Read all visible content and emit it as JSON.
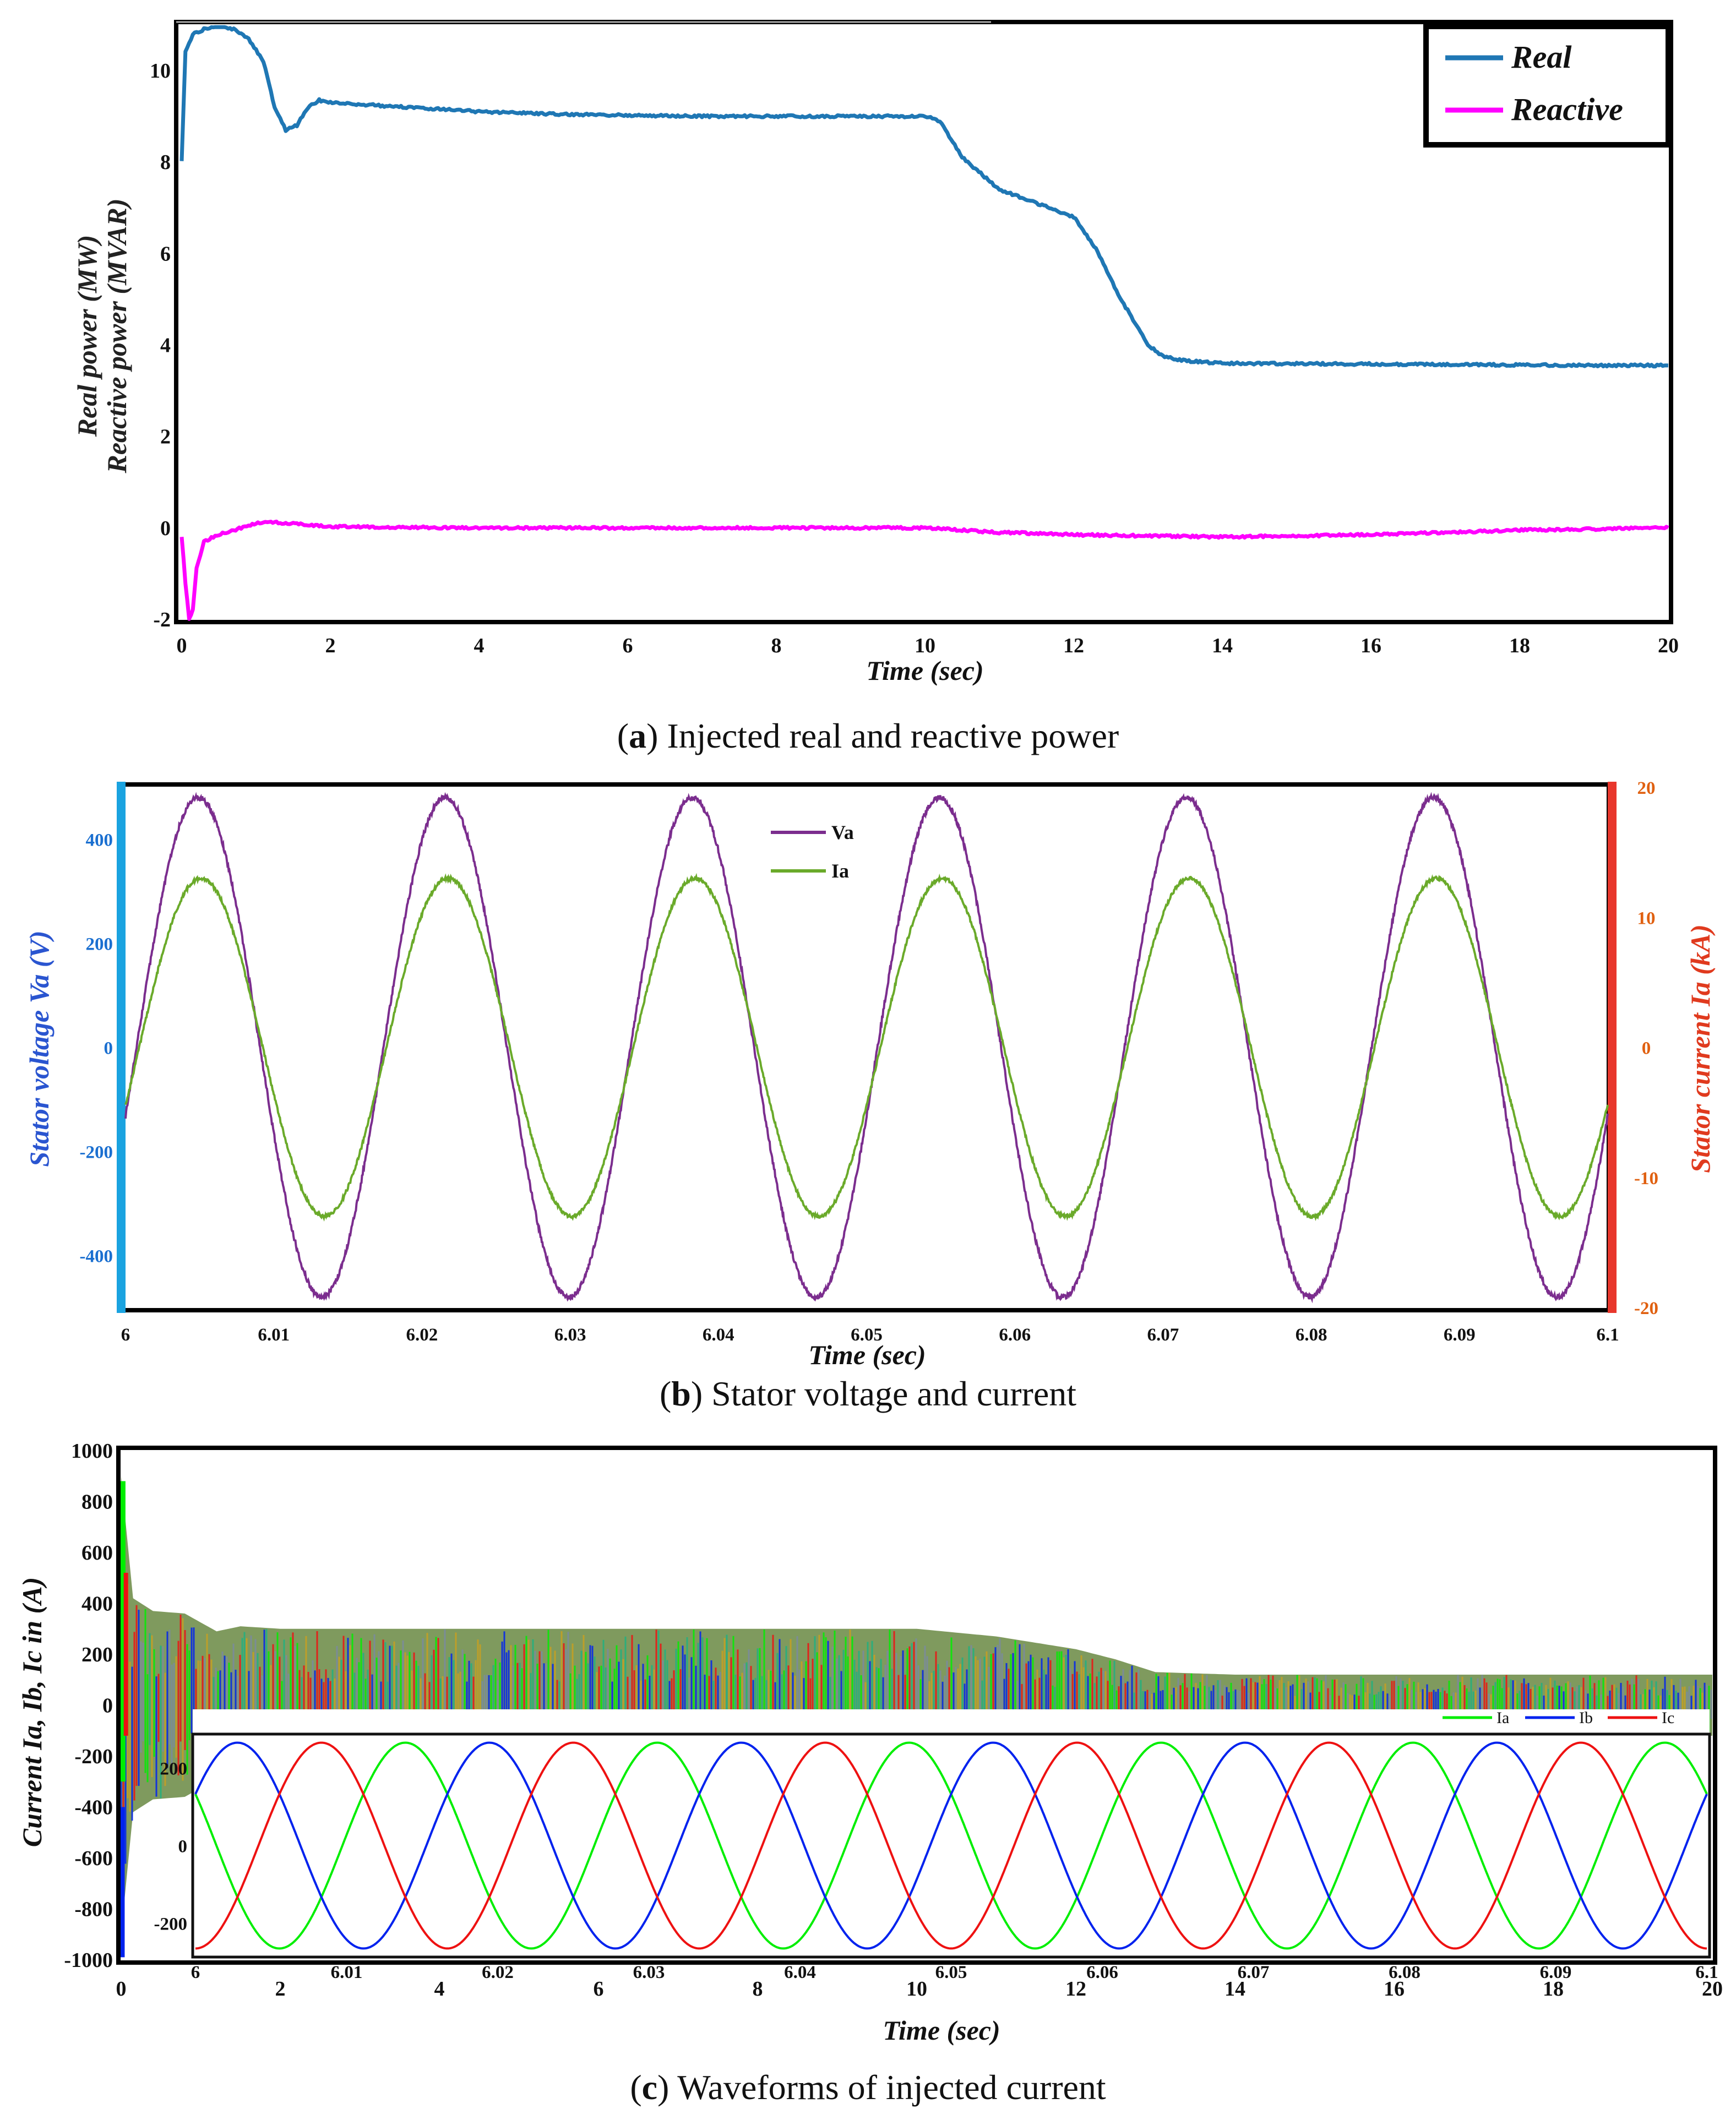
{
  "colors": {
    "real": "#1f77b4",
    "reactive": "#ff00ff",
    "va": "#7b2d8e",
    "ia_b": "#6aaa2a",
    "left_axis_b": "#1aa3e0",
    "right_axis_b": "#e8372c",
    "left_tick_b": "#1a6fd0",
    "right_tick_b": "#e06010",
    "ia_c": "#00ee00",
    "ib_c": "#0022ee",
    "ic_c": "#ee1111"
  },
  "captions": {
    "a": {
      "letter": "a",
      "text": " Injected real and reactive power"
    },
    "b": {
      "letter": "b",
      "text": " Stator voltage and current"
    },
    "c": {
      "letter": "c",
      "text": " Waveforms of injected current"
    }
  },
  "chart_data": [
    {
      "id": "a",
      "type": "line",
      "xlabel": "Time (sec)",
      "ylabel_lines": [
        "Real power (MW)",
        "Reactive power (MVAR)"
      ],
      "xlim": [
        0,
        20
      ],
      "ylim": [
        -2,
        11
      ],
      "xticks": [
        "0",
        "2",
        "4",
        "6",
        "8",
        "10",
        "12",
        "14",
        "16",
        "18",
        "20"
      ],
      "yticks": [
        "-2",
        "0",
        "2",
        "4",
        "6",
        "8",
        "10"
      ],
      "series": [
        {
          "name": "Real",
          "x": [
            0,
            0.05,
            0.15,
            0.3,
            0.5,
            0.7,
            0.9,
            1.1,
            1.25,
            1.4,
            1.55,
            1.7,
            1.85,
            2.0,
            3,
            4,
            5,
            6,
            7,
            8,
            9,
            10,
            10.2,
            10.5,
            11,
            11.5,
            12,
            12.3,
            12.6,
            13,
            13.2,
            13.5,
            14,
            16,
            18,
            20
          ],
          "values": [
            8.0,
            10.4,
            10.8,
            10.9,
            11.0,
            10.9,
            10.7,
            10.2,
            9.2,
            8.7,
            8.8,
            9.2,
            9.35,
            9.3,
            9.2,
            9.1,
            9.05,
            9.02,
            9.0,
            9.0,
            9.0,
            9.0,
            8.9,
            8.1,
            7.4,
            7.1,
            6.8,
            6.1,
            5.1,
            4.0,
            3.75,
            3.65,
            3.6,
            3.58,
            3.56,
            3.55
          ]
        },
        {
          "name": "Reactive",
          "x": [
            0,
            0.05,
            0.1,
            0.15,
            0.2,
            0.3,
            0.5,
            0.8,
            1.0,
            1.2,
            1.5,
            1.8,
            2,
            4,
            6,
            8,
            10,
            11,
            12,
            14,
            16,
            18,
            20
          ],
          "values": [
            -0.2,
            -1.2,
            -2.0,
            -1.8,
            -0.9,
            -0.3,
            -0.15,
            0.0,
            0.1,
            0.12,
            0.1,
            0.05,
            0.03,
            0.0,
            0.0,
            0.0,
            0.0,
            -0.1,
            -0.15,
            -0.2,
            -0.15,
            -0.05,
            0.0
          ]
        }
      ]
    },
    {
      "id": "b",
      "type": "line",
      "xlabel": "Time (sec)",
      "ylabel_left": "Stator voltage Va (V)",
      "ylabel_right": "Stator current Ia (kA)",
      "xlim": [
        6,
        6.1
      ],
      "ylim_left": [
        -500,
        500
      ],
      "ylim_right": [
        -20,
        20
      ],
      "xticks": [
        "6",
        "6.01",
        "6.02",
        "6.03",
        "6.04",
        "6.05",
        "6.06",
        "6.07",
        "6.08",
        "6.09",
        "6.1"
      ],
      "yticks_left": [
        "-400",
        "-200",
        "0",
        "200",
        "400"
      ],
      "yticks_right": [
        "-20",
        "-10",
        "0",
        "10",
        "20"
      ],
      "series": [
        {
          "name": "Va",
          "axis": "left",
          "amplitude": 480,
          "frequency_hz": 60,
          "phase_deg": -16
        },
        {
          "name": "Ia",
          "axis": "right",
          "amplitude": 13.0,
          "frequency_hz": 60,
          "phase_deg": -20
        }
      ]
    },
    {
      "id": "c",
      "type": "line",
      "xlabel": "Time (sec)",
      "ylabel": "Current Ia, Ib, Ic in (A)",
      "xlim": [
        0,
        20
      ],
      "ylim": [
        -1000,
        1000
      ],
      "xticks": [
        "0",
        "2",
        "4",
        "6",
        "8",
        "10",
        "12",
        "14",
        "16",
        "18",
        "20"
      ],
      "yticks": [
        "-1000",
        "-800",
        "-600",
        "-400",
        "-200",
        "0",
        "200",
        "400",
        "600",
        "800",
        "1000"
      ],
      "envelope": {
        "x": [
          0,
          0.15,
          0.4,
          0.8,
          1.2,
          1.5,
          2,
          4,
          6,
          8,
          10,
          11,
          12,
          12.5,
          13,
          13.5,
          14,
          16,
          18,
          20
        ],
        "amplitude": [
          900,
          420,
          370,
          360,
          290,
          310,
          300,
          300,
          300,
          300,
          300,
          270,
          220,
          180,
          130,
          125,
          120,
          120,
          120,
          120
        ]
      },
      "series": [
        {
          "name": "Ia"
        },
        {
          "name": "Ib"
        },
        {
          "name": "Ic"
        }
      ],
      "inset": {
        "xlim": [
          6,
          6.1
        ],
        "ylim": [
          -280,
          280
        ],
        "xticks": [
          "6",
          "6.01",
          "6.02",
          "6.03",
          "6.04",
          "6.05",
          "6.06",
          "6.07",
          "6.08",
          "6.09",
          "6.1"
        ],
        "yticks": [
          "-200",
          "0",
          "200"
        ],
        "amplitude": 265,
        "frequency_hz": 60,
        "series": [
          {
            "name": "Ia",
            "phase_deg": 150
          },
          {
            "name": "Ib",
            "phase_deg": 30
          },
          {
            "name": "Ic",
            "phase_deg": -90
          }
        ]
      }
    }
  ]
}
